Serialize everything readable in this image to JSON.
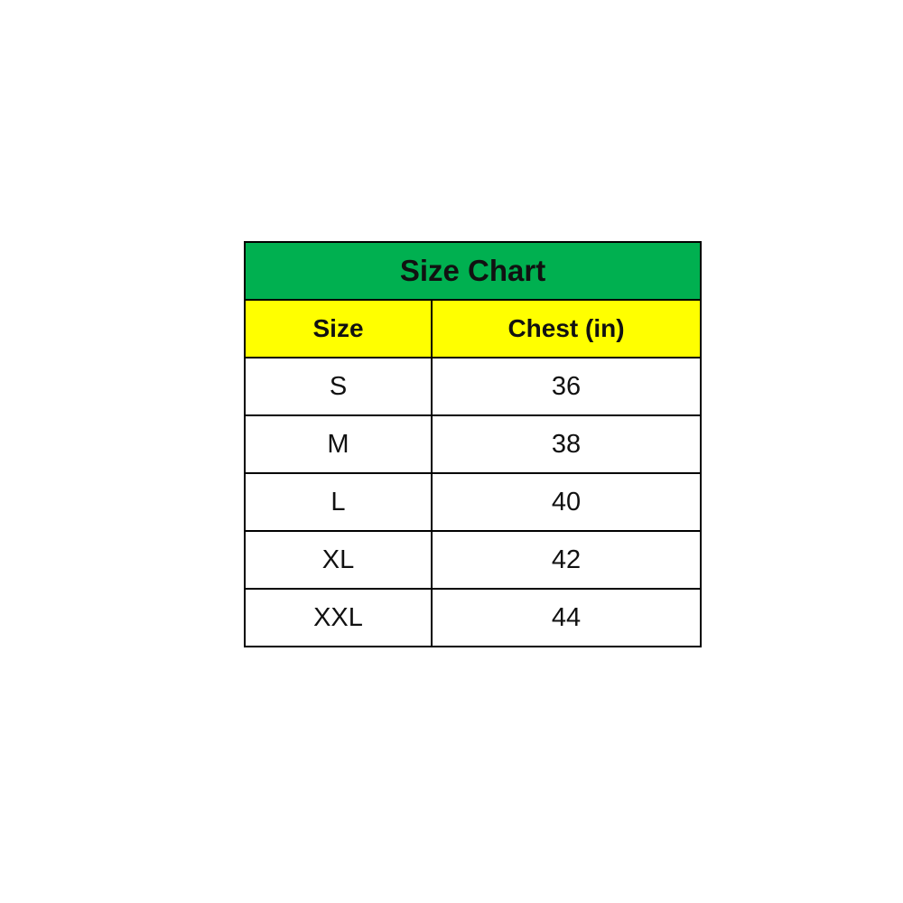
{
  "title": "Size Chart",
  "colors": {
    "title_bg": "#00B050",
    "header_bg": "#FFFF00"
  },
  "columns": [
    "Size",
    "Chest (in)"
  ],
  "rows": [
    [
      "S",
      "36"
    ],
    [
      "M",
      "38"
    ],
    [
      "L",
      "40"
    ],
    [
      "XL",
      "42"
    ],
    [
      "XXL",
      "44"
    ]
  ]
}
